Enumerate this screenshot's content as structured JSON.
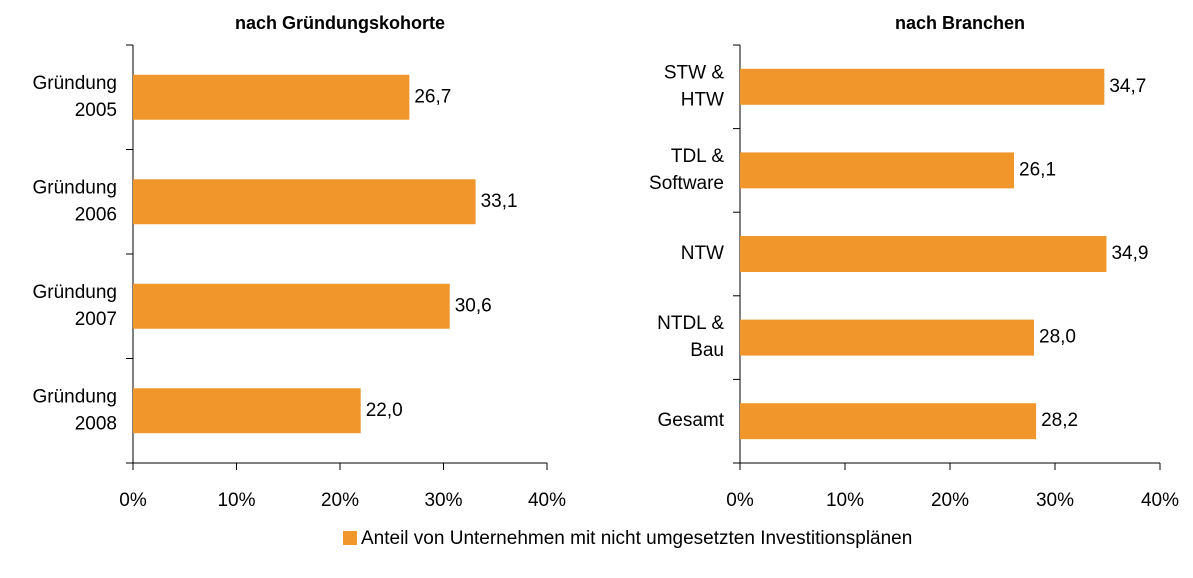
{
  "chart_data": [
    {
      "type": "bar",
      "orientation": "horizontal",
      "title": "nach Gründungskohorte",
      "categories": [
        "Gründung\n2005",
        "Gründung\n2006",
        "Gründung\n2007",
        "Gründung\n2008"
      ],
      "values": [
        26.7,
        33.1,
        30.6,
        22.0
      ],
      "value_labels": [
        "26,7",
        "33,1",
        "30,6",
        "22,0"
      ],
      "color": "#f0962a",
      "xlim": [
        0,
        40
      ],
      "xticks": [
        {
          "value": 0,
          "label": "0%"
        },
        {
          "value": 10,
          "label": "10%"
        },
        {
          "value": 20,
          "label": "20%"
        },
        {
          "value": 30,
          "label": "30%"
        },
        {
          "value": 40,
          "label": "40%"
        }
      ]
    },
    {
      "type": "bar",
      "orientation": "horizontal",
      "title": "nach Branchen",
      "categories": [
        "STW &\nHTW",
        "TDL &\nSoftware",
        "NTW",
        "NTDL &\nBau",
        "Gesamt"
      ],
      "values": [
        34.7,
        26.1,
        34.9,
        28.0,
        28.2
      ],
      "value_labels": [
        "34,7",
        "26,1",
        "34,9",
        "28,0",
        "28,2"
      ],
      "color": "#f0962a",
      "xlim": [
        0,
        40
      ],
      "xticks": [
        {
          "value": 0,
          "label": "0%"
        },
        {
          "value": 10,
          "label": "10%"
        },
        {
          "value": 20,
          "label": "20%"
        },
        {
          "value": 30,
          "label": "30%"
        },
        {
          "value": 40,
          "label": "40%"
        }
      ]
    }
  ],
  "legend": {
    "label": "Anteil von Unternehmen mit nicht umgesetzten Investitionsplänen",
    "color": "#f0962a"
  }
}
